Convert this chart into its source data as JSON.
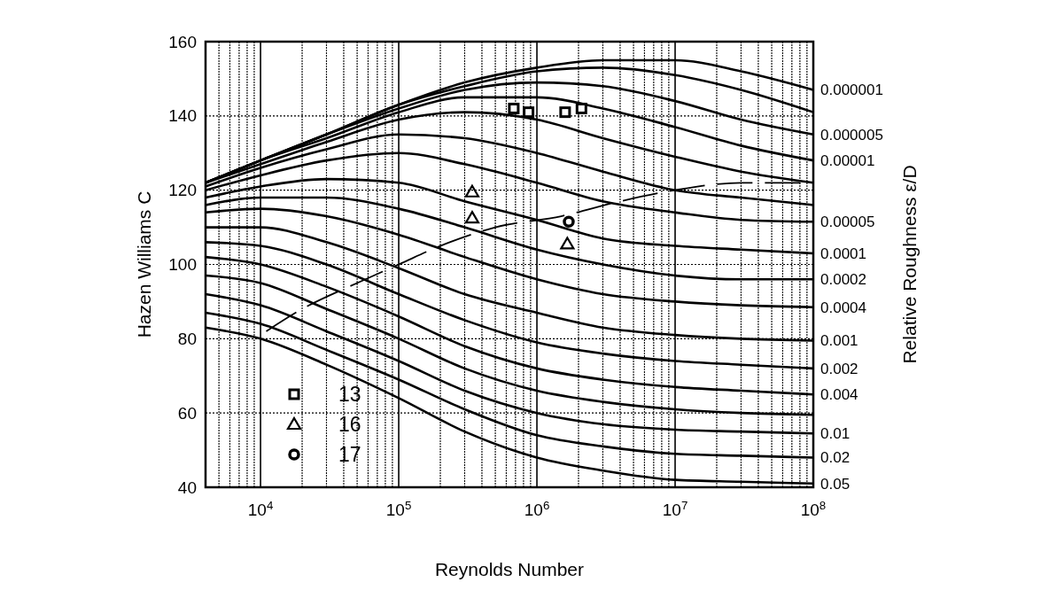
{
  "chart_data": {
    "type": "line",
    "xlabel": "Reynolds Number",
    "ylabel": "Hazen Williams C",
    "y2label": "Relative Roughness ε/D",
    "log": "x",
    "grid": true,
    "legend": "bottom left",
    "line_style": "solid",
    "marker": "none",
    "xlim": [
      4000,
      100000000
    ],
    "xticks": [
      {
        "value": 10000,
        "label": "10$^{4}$"
      },
      {
        "value": 100000,
        "label": "10$^{5}$"
      },
      {
        "value": 1000000,
        "label": "10$^{6}$"
      },
      {
        "value": 10000000,
        "label": "10$^{7}$"
      },
      {
        "value": 100000000,
        "label": "10$^{8}$"
      }
    ],
    "ylim": [
      40,
      160
    ],
    "yticks": [
      40,
      60,
      80,
      100,
      120,
      140,
      160
    ],
    "x": [
      4000,
      10000,
      30000,
      100000,
      300000,
      1000000,
      3000000,
      10000000,
      30000000,
      100000000
    ],
    "series": [
      {
        "name": "0.000001",
        "color": "#000000",
        "values": [
          122,
          128,
          135,
          143,
          149,
          153,
          155,
          155,
          152,
          147
        ]
      },
      {
        "color": "#000000",
        "values": [
          122,
          128,
          135,
          143,
          148,
          152,
          153,
          151,
          147,
          141
        ]
      },
      {
        "name": "0.000005",
        "color": "#000000",
        "values": [
          122,
          128,
          135,
          142,
          147,
          149,
          148,
          144,
          139,
          135
        ]
      },
      {
        "name": "0.00001",
        "color": "#000000",
        "values": [
          122,
          128,
          134,
          141,
          145,
          145,
          142,
          137,
          132,
          128
        ]
      },
      {
        "color": "#000000",
        "values": [
          122,
          127,
          133,
          139,
          141,
          139,
          134,
          129,
          125,
          122
        ]
      },
      {
        "color": "#000000",
        "values": [
          121,
          126,
          131,
          135,
          134,
          130,
          125,
          120,
          118,
          116
        ]
      },
      {
        "name": "0.00005",
        "color": "#000000",
        "values": [
          120,
          124,
          128,
          130,
          127,
          122,
          117,
          114,
          112,
          111.5
        ]
      },
      {
        "name": "0.0001",
        "color": "#000000",
        "values": [
          118,
          121,
          123,
          122,
          117,
          112,
          107,
          105,
          104,
          103
        ]
      },
      {
        "name": "0.0002",
        "color": "#000000",
        "values": [
          116,
          118,
          118,
          115,
          110,
          104,
          100,
          97,
          96,
          96
        ]
      },
      {
        "name": "0.0004",
        "color": "#000000",
        "values": [
          114,
          115,
          113,
          108,
          102,
          96,
          92,
          90,
          89,
          88.5
        ]
      },
      {
        "name": "0.001",
        "color": "#000000",
        "values": [
          110,
          110,
          106,
          99,
          92,
          87,
          83,
          81,
          80,
          79.5
        ]
      },
      {
        "name": "0.002",
        "color": "#000000",
        "values": [
          106,
          105,
          100,
          92,
          85,
          79,
          76,
          74,
          73,
          72
        ]
      },
      {
        "name": "0.004",
        "color": "#000000",
        "values": [
          102,
          100,
          94,
          86,
          78,
          72,
          69,
          67,
          66,
          65
        ]
      },
      {
        "color": "#000000",
        "values": [
          97,
          95,
          88,
          80,
          72,
          66,
          63,
          61,
          60,
          59.5
        ]
      },
      {
        "name": "0.01",
        "color": "#000000",
        "values": [
          92,
          89,
          82,
          74,
          66,
          60,
          57,
          55.5,
          55,
          54.5
        ]
      },
      {
        "name": "0.02",
        "color": "#000000",
        "values": [
          87,
          84,
          77,
          69,
          61,
          54,
          51,
          49,
          48.5,
          48
        ]
      },
      {
        "name": "0.05",
        "color": "#000000",
        "values": [
          83,
          80,
          73,
          64,
          55,
          48,
          44.5,
          42,
          41.5,
          41
        ]
      },
      {
        "color": "#000000",
        "line_style": "dashed",
        "x": [
          11000,
          20000,
          50000,
          100000,
          200000,
          500000,
          1500000,
          4000000,
          10000000,
          30000000,
          100000000
        ],
        "values": [
          82,
          88,
          95,
          100,
          105,
          110,
          113,
          117,
          120,
          122,
          122
        ]
      },
      {
        "type": "scatter",
        "name": "13",
        "marker": "square",
        "color": "#000000",
        "x": [
          680000,
          870000,
          1600000,
          2100000
        ],
        "values": [
          142,
          141,
          141,
          142
        ]
      },
      {
        "type": "scatter",
        "name": "16",
        "marker": "triangle",
        "color": "#000000",
        "x": [
          340000,
          340000,
          1660000
        ],
        "values": [
          119.5,
          112.5,
          105.5
        ]
      },
      {
        "type": "scatter",
        "name": "17",
        "marker": "circle",
        "color": "#000000",
        "x": [
          1700000
        ],
        "values": [
          111.5
        ]
      }
    ]
  }
}
